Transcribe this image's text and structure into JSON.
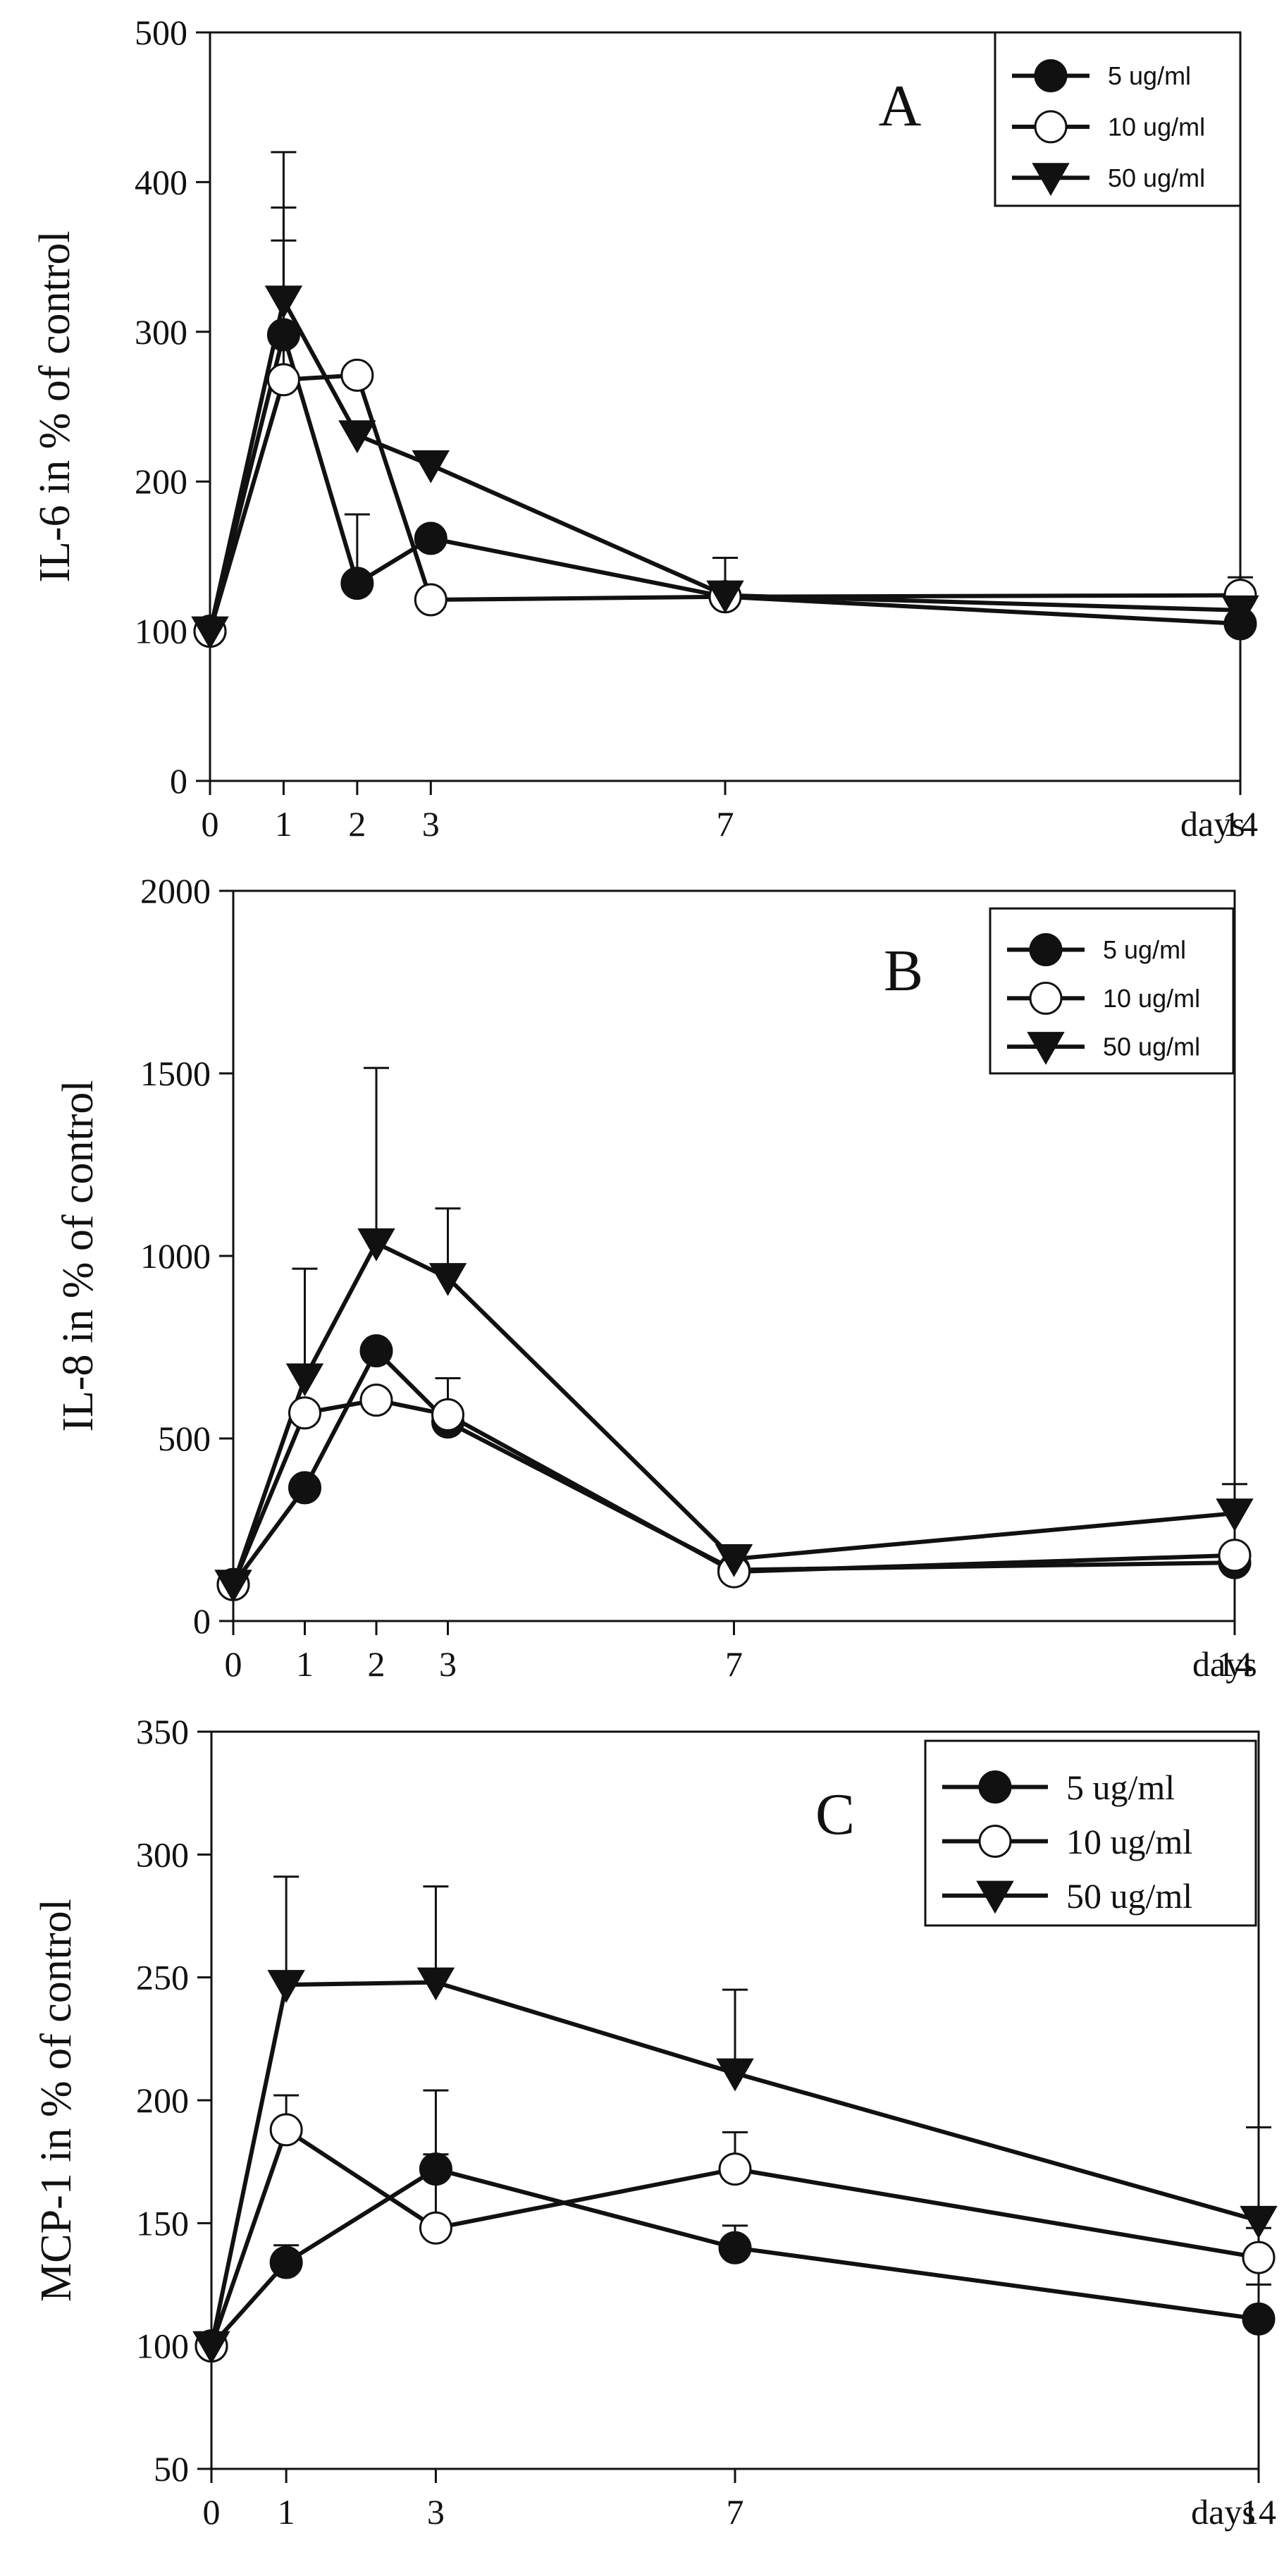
{
  "colors": {
    "ink": "#111111",
    "open_fill": "#ffffff",
    "background": "#ffffff"
  },
  "chart_data": [
    {
      "type": "line",
      "panel": "A",
      "xlabel": "days",
      "ylabel": "IL-6 in % of control",
      "ylim": [
        0,
        500
      ],
      "yticks": [
        0,
        100,
        200,
        300,
        400,
        500
      ],
      "xlim": [
        0,
        14
      ],
      "xticks": [
        0,
        1,
        2,
        3,
        7,
        14
      ],
      "grid": false,
      "legend_position": "top-right",
      "series": [
        {
          "name": "5 ug/ml",
          "marker": "filled-circle",
          "x": [
            0,
            1,
            2,
            3,
            7,
            14
          ],
          "y": [
            100,
            298,
            132,
            162,
            123,
            105
          ],
          "err": [
            0,
            85,
            46,
            0,
            0,
            0
          ]
        },
        {
          "name": "10 ug/ml",
          "marker": "open-circle",
          "x": [
            0,
            1,
            2,
            3,
            7,
            14
          ],
          "y": [
            100,
            268,
            271,
            121,
            123,
            124
          ],
          "err": [
            0,
            93,
            0,
            0,
            26,
            12
          ]
        },
        {
          "name": "50 ug/ml",
          "marker": "filled-triangle-down",
          "x": [
            0,
            1,
            2,
            3,
            7,
            14
          ],
          "y": [
            100,
            321,
            231,
            211,
            124,
            114
          ],
          "err": [
            0,
            99,
            0,
            0,
            0,
            0
          ]
        }
      ]
    },
    {
      "type": "line",
      "panel": "B",
      "xlabel": "days",
      "ylabel": "IL-8 in % of control",
      "ylim": [
        0,
        2000
      ],
      "yticks": [
        0,
        500,
        1000,
        1500,
        2000
      ],
      "xlim": [
        0,
        14
      ],
      "xticks": [
        0,
        1,
        2,
        3,
        7,
        14
      ],
      "grid": false,
      "legend_position": "top-right",
      "series": [
        {
          "name": "5 ug/ml",
          "marker": "filled-circle",
          "x": [
            0,
            1,
            2,
            3,
            7,
            14
          ],
          "y": [
            100,
            365,
            740,
            545,
            140,
            160
          ],
          "err": [
            0,
            0,
            0,
            0,
            0,
            0
          ]
        },
        {
          "name": "10 ug/ml",
          "marker": "open-circle",
          "x": [
            0,
            1,
            2,
            3,
            7,
            14
          ],
          "y": [
            100,
            570,
            605,
            565,
            135,
            180
          ],
          "err": [
            0,
            0,
            0,
            100,
            0,
            0
          ]
        },
        {
          "name": "50 ug/ml",
          "marker": "filled-triangle-down",
          "x": [
            0,
            1,
            2,
            3,
            7,
            14
          ],
          "y": [
            100,
            665,
            1035,
            940,
            170,
            295
          ],
          "err": [
            0,
            300,
            480,
            190,
            35,
            80
          ]
        }
      ]
    },
    {
      "type": "line",
      "panel": "C",
      "xlabel": "days",
      "ylabel": "MCP-1 in % of control",
      "ylim": [
        50,
        350
      ],
      "yticks": [
        50,
        100,
        150,
        200,
        250,
        300,
        350
      ],
      "xlim": [
        0,
        14
      ],
      "xticks": [
        0,
        1,
        3,
        7,
        14
      ],
      "grid": false,
      "legend_position": "top-right",
      "series": [
        {
          "name": "5 ug/ml",
          "marker": "filled-circle",
          "x": [
            0,
            1,
            3,
            7,
            14
          ],
          "y": [
            100,
            134,
            172,
            140,
            111
          ],
          "err": [
            0,
            7,
            32,
            9,
            14
          ]
        },
        {
          "name": "10 ug/ml",
          "marker": "open-circle",
          "x": [
            0,
            1,
            3,
            7,
            14
          ],
          "y": [
            100,
            188,
            148,
            172,
            136
          ],
          "err": [
            0,
            14,
            30,
            15,
            12
          ]
        },
        {
          "name": "50 ug/ml",
          "marker": "filled-triangle-down",
          "x": [
            0,
            1,
            3,
            7,
            14
          ],
          "y": [
            100,
            247,
            248,
            211,
            151
          ],
          "err": [
            0,
            44,
            39,
            34,
            38
          ]
        }
      ]
    }
  ]
}
